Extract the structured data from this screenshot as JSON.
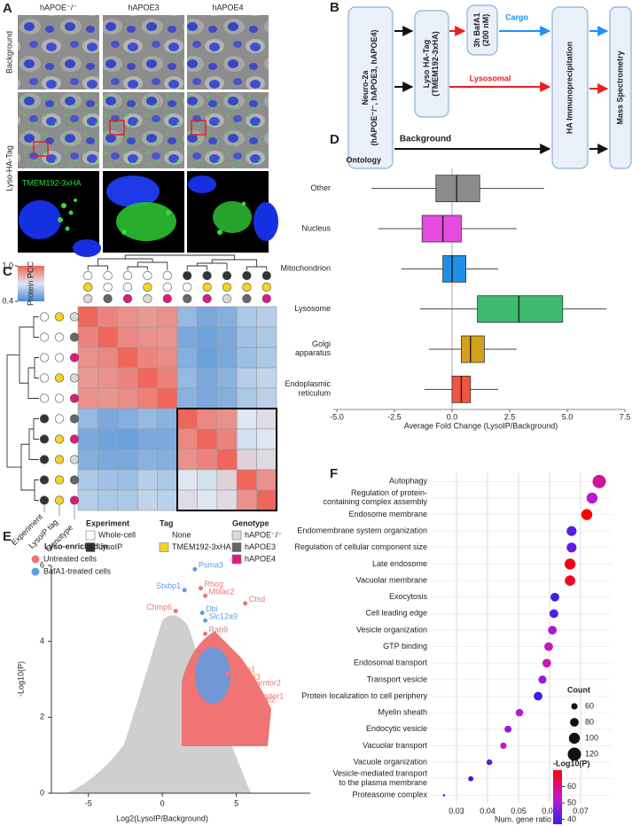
{
  "figure": {
    "panel_labels": [
      "A",
      "B",
      "C",
      "D",
      "E",
      "F"
    ],
    "panel_a": {
      "columns": [
        "hAPOE⁻/⁻",
        "hAPOE3",
        "hAPOE4"
      ],
      "rows": [
        "Background",
        "Lyso-HA-Tag"
      ],
      "stain": "TMEM192-3xHA"
    },
    "panel_b": {
      "boxes": [
        "Neuro-2a\n(hAPOE⁻/⁻, hAPOE3, hAPOE4)",
        "Lyso HA-Tag\n(TMEM192-3xHA)",
        "3h BafA1\n(200 nM)",
        "HA Immunoprecipitation",
        "Mass Spectrometry"
      ],
      "arrow_labels": [
        "Cargo",
        "Lysosomal",
        "Background"
      ]
    }
  },
  "chart_data": [
    {
      "type": "heatmap",
      "colorbar_label": "Protein PCC",
      "clim": [
        0.4,
        1.0
      ],
      "cticks": [
        {
          "value": 1.0,
          "label": "1.0"
        },
        0.4
      ],
      "colors": {
        "low": "#4a8bd3",
        "mid": "#dde6f1",
        "high": "#f0665a"
      },
      "values": [
        [
          1.0,
          0.93,
          0.9,
          0.88,
          0.9,
          0.55,
          0.5,
          0.52,
          0.6,
          0.62
        ],
        [
          0.93,
          1.0,
          0.92,
          0.9,
          0.89,
          0.5,
          0.48,
          0.5,
          0.58,
          0.6
        ],
        [
          0.9,
          0.92,
          1.0,
          0.93,
          0.91,
          0.52,
          0.47,
          0.5,
          0.57,
          0.6
        ],
        [
          0.88,
          0.9,
          0.93,
          1.0,
          0.94,
          0.55,
          0.5,
          0.53,
          0.62,
          0.64
        ],
        [
          0.9,
          0.89,
          0.91,
          0.94,
          1.0,
          0.53,
          0.5,
          0.52,
          0.6,
          0.63
        ],
        [
          0.55,
          0.5,
          0.52,
          0.55,
          0.53,
          1.0,
          0.92,
          0.9,
          0.7,
          0.72
        ],
        [
          0.5,
          0.48,
          0.47,
          0.5,
          0.5,
          0.92,
          1.0,
          0.93,
          0.68,
          0.7
        ],
        [
          0.52,
          0.5,
          0.5,
          0.53,
          0.52,
          0.9,
          0.93,
          1.0,
          0.75,
          0.73
        ],
        [
          0.6,
          0.58,
          0.57,
          0.62,
          0.6,
          0.7,
          0.68,
          0.75,
          1.0,
          0.9
        ],
        [
          0.62,
          0.6,
          0.6,
          0.64,
          0.63,
          0.72,
          0.7,
          0.73,
          0.9,
          1.0
        ]
      ],
      "annotation_titles": [
        "Experiment",
        "LysoIP tag",
        "Genotype"
      ],
      "annotations": [
        [
          "#ffffff",
          "#ffffff",
          "#ffffff",
          "#ffffff",
          "#ffffff",
          "#333333",
          "#333333",
          "#333333",
          "#333333",
          "#333333"
        ],
        [
          "#f5d327",
          "#ffffff",
          "#ffffff",
          "#f5d327",
          "#ffffff",
          "#ffffff",
          "#f5d327",
          "#f5d327",
          "#f5d327",
          "#f5d327"
        ],
        [
          "#d9d9d9",
          "#666666",
          "#e0197d",
          "#d9d9d9",
          "#e0197d",
          "#666666",
          "#e0197d",
          "#d9d9d9",
          "#666666",
          "#e0197d"
        ]
      ],
      "legend": [
        {
          "title": "Experiment",
          "items": [
            {
              "name": "Whole-cell",
              "color": "#ffffff"
            },
            {
              "name": "LysoIP",
              "color": "#333333"
            }
          ]
        },
        {
          "title": "Tag",
          "items": [
            {
              "name": "None",
              "color": "none"
            },
            {
              "name": "TMEM192-3xHA",
              "color": "#f5d327"
            }
          ]
        },
        {
          "title": "Genotype",
          "items": [
            {
              "name": "hAPOE⁻/⁻",
              "color": "#d9d9d9"
            },
            {
              "name": "hAPOE3",
              "color": "#666666"
            },
            {
              "name": "hAPOE4",
              "color": "#e0197d"
            }
          ]
        }
      ]
    },
    {
      "type": "box",
      "title": "Ontology",
      "xlabel": "Average Fold Change (LysoIP/Background)",
      "categories": [
        "Other",
        "Nucleus",
        "Mitochondrion",
        "Lysosome",
        "Golgi\napparatus",
        "Endoplasmic\nreticulum"
      ],
      "colors": [
        "#8c8c8c",
        "#e64ae0",
        "#1f8fe6",
        "#3dba6e",
        "#d4a11c",
        "#f0553f"
      ],
      "stats": [
        {
          "whislo": -3.5,
          "q1": -0.7,
          "med": 0.2,
          "q3": 1.2,
          "whishi": 4.0
        },
        {
          "whislo": -3.2,
          "q1": -1.3,
          "med": -0.4,
          "q3": 0.4,
          "whishi": 2.8
        },
        {
          "whislo": -2.2,
          "q1": -0.4,
          "med": 0.0,
          "q3": 0.6,
          "whishi": 2.0
        },
        {
          "whislo": -1.4,
          "q1": 1.1,
          "med": 2.9,
          "q3": 4.8,
          "whishi": 6.7
        },
        {
          "whislo": -1.0,
          "q1": 0.4,
          "med": 0.8,
          "q3": 1.4,
          "whishi": 2.8
        },
        {
          "whislo": -1.2,
          "q1": 0.0,
          "med": 0.4,
          "q3": 0.8,
          "whishi": 2.0
        }
      ],
      "xlim": [
        -5,
        7.5
      ],
      "xticks": [
        {
          "value": -5,
          "label": "-5.0"
        },
        {
          "value": -2.5,
          "label": "-2.5"
        },
        {
          "value": 0,
          "label": "0.0"
        },
        {
          "value": 2.5,
          "label": "2.5"
        },
        {
          "value": 5,
          "label": "5.0"
        },
        {
          "value": 7.5,
          "label": "7.5"
        }
      ]
    },
    {
      "type": "scatter",
      "legend_title": "Lyso-enriched in",
      "xlabel": "Log2(LysoIP/Background)",
      "ylabel": "-Log10(P)",
      "xlim": [
        -7.5,
        10
      ],
      "ylim": [
        0,
        6
      ],
      "xticks": [
        -5,
        0,
        5
      ],
      "yticks": [
        0,
        2,
        4,
        6
      ],
      "series": [
        {
          "name": "Untreated cells",
          "color": "#f07474",
          "labels": [
            "Rhog",
            "Mblac2",
            "Ctsd",
            "Chmp6",
            "Rab9",
            "Lamp1",
            "Cd63",
            "Lamtor2",
            "Lamtor1",
            "Scarb2"
          ],
          "x": [
            2.6,
            2.9,
            5.6,
            0.9,
            2.9,
            4.4,
            5.1,
            5.8,
            6.0,
            5.7
          ],
          "values": [
            5.4,
            5.2,
            5.0,
            4.8,
            4.2,
            3.15,
            2.95,
            2.8,
            2.45,
            2.35
          ]
        },
        {
          "name": "BafA1-treated cells",
          "color": "#5b9ee6",
          "labels": [
            "Psma3",
            "Stxbp1",
            "Slc12a9",
            "Dbi"
          ],
          "x": [
            2.2,
            1.5,
            2.9,
            2.7
          ],
          "values": [
            5.9,
            5.35,
            4.55,
            4.75
          ]
        }
      ]
    },
    {
      "type": "dot",
      "xlabel": "Num. gene ratio",
      "categories": [
        "Autophagy",
        "Regulation of protein-\ncontaining complex assembly",
        "Endosome membrane",
        "Endomembrane system organization",
        "Regulation of cellular component size",
        "Late endosome",
        "Vacuolar membrane",
        "Exocytosis",
        "Cell leading edge",
        "Vesicle organization",
        "GTP binding",
        "Endosomal transport",
        "Transport vesicle",
        "Protein localization to cell periphery",
        "Myelin sheath",
        "Endocytic vesicle",
        "Vacuolar transport",
        "Vacuole organization",
        "Vesicle-mediated transport\nto the plasma membrane",
        "Proteasome complex"
      ],
      "values": [
        0.076,
        0.0737,
        0.072,
        0.0671,
        0.0671,
        0.0666,
        0.0666,
        0.0617,
        0.0614,
        0.0609,
        0.0597,
        0.0591,
        0.0577,
        0.0563,
        0.0503,
        0.0466,
        0.0451,
        0.0406,
        0.0346,
        0.026
      ],
      "sizes": [
        120,
        100,
        100,
        90,
        90,
        100,
        95,
        80,
        80,
        80,
        80,
        80,
        75,
        80,
        70,
        65,
        60,
        55,
        50,
        25
      ],
      "color_values": [
        58,
        52,
        70,
        40,
        42,
        68,
        67,
        38,
        39,
        50,
        55,
        56,
        48,
        36,
        52,
        48,
        55,
        42,
        35,
        40
      ],
      "xlim": [
        0.022,
        0.08
      ],
      "xticks": [
        0.03,
        0.04,
        0.05,
        0.06,
        0.07
      ],
      "size_legend": {
        "title": "Count",
        "values": [
          60,
          80,
          100,
          120
        ]
      },
      "color_legend": {
        "title": "-Log10(P)",
        "clim": [
          37,
          70
        ],
        "ticks": [
          60,
          50,
          40
        ],
        "colors": [
          "#3b1fe6",
          "#c01ad0",
          "#ff0000"
        ]
      }
    }
  ]
}
